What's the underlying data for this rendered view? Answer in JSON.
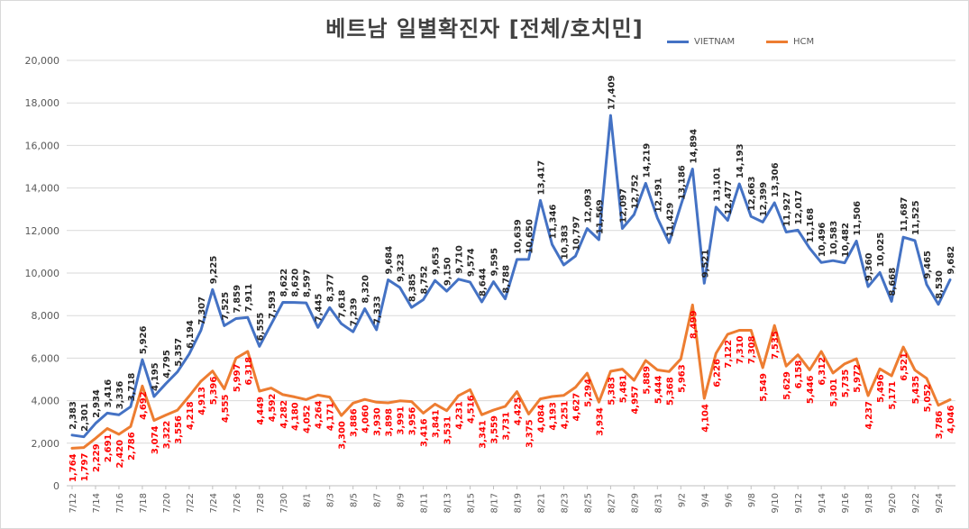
{
  "chart_data": {
    "type": "line",
    "title": "베트남  일별확진자 [전체/호치민]",
    "xlabel": "",
    "ylabel": "",
    "ylim": [
      0,
      20000
    ],
    "yticks": [
      "0",
      "2,000",
      "4,000",
      "6,000",
      "8,000",
      "10,000",
      "12,000",
      "14,000",
      "16,000",
      "18,000",
      "20,000"
    ],
    "grid": true,
    "legend_position": "top-right",
    "x": [
      "7/12",
      "7/13",
      "7/14",
      "7/15",
      "7/16",
      "7/17",
      "7/18",
      "7/19",
      "7/20",
      "7/21",
      "7/22",
      "7/23",
      "7/24",
      "7/25",
      "7/26",
      "7/27",
      "7/28",
      "7/29",
      "7/30",
      "7/31",
      "8/1",
      "8/2",
      "8/3",
      "8/4",
      "8/5",
      "8/6",
      "8/7",
      "8/8",
      "8/9",
      "8/10",
      "8/11",
      "8/12",
      "8/13",
      "8/14",
      "8/15",
      "8/16",
      "8/17",
      "8/18",
      "8/19",
      "8/20",
      "8/21",
      "8/22",
      "8/23",
      "8/24",
      "8/25",
      "8/26",
      "8/27",
      "8/28",
      "8/29",
      "8/30",
      "8/31",
      "9/1",
      "9/2",
      "9/3",
      "9/4",
      "9/5",
      "9/6",
      "9/7",
      "9/8",
      "9/9",
      "9/10",
      "9/11",
      "9/12",
      "9/13",
      "9/14",
      "9/15",
      "9/16",
      "9/17",
      "9/18",
      "9/19",
      "9/20",
      "9/21",
      "9/22",
      "9/23",
      "9/24",
      "9/25"
    ],
    "x_tick_labels": [
      "7/12",
      "7/14",
      "7/16",
      "7/18",
      "7/20",
      "7/22",
      "7/24",
      "7/26",
      "7/28",
      "7/30",
      "8/1",
      "8/3",
      "8/5",
      "8/7",
      "8/9",
      "8/11",
      "8/13",
      "8/15",
      "8/17",
      "8/19",
      "8/21",
      "8/23",
      "8/25",
      "8/27",
      "8/29",
      "8/31",
      "9/2",
      "9/4",
      "9/6",
      "9/8",
      "9/10",
      "9/12",
      "9/14",
      "9/16",
      "9/18",
      "9/20",
      "9/22",
      "9/24"
    ],
    "series": [
      {
        "name": "VIETNAM",
        "color": "#4472c4",
        "label_color": "#262626",
        "values": [
          2383,
          2301,
          2934,
          3416,
          3336,
          3718,
          5926,
          4195,
          4795,
          5357,
          6194,
          7307,
          9225,
          7525,
          7859,
          7911,
          6555,
          7593,
          8622,
          8620,
          8597,
          7445,
          8377,
          7618,
          7239,
          8320,
          7333,
          9684,
          9323,
          8385,
          8752,
          9653,
          9150,
          9710,
          9574,
          8644,
          9595,
          8788,
          10639,
          10650,
          13417,
          11346,
          10383,
          10797,
          12093,
          11569,
          17409,
          12097,
          12752,
          14219,
          12591,
          11429,
          13186,
          14894,
          9521,
          13101,
          12477,
          14193,
          12663,
          12399,
          13306,
          11927,
          12017,
          11168,
          10496,
          10583,
          10482,
          11506,
          9360,
          10025,
          8668,
          11687,
          11525,
          9465,
          8530,
          9682
        ],
        "labels": [
          "2,383",
          "2,301",
          "2,934",
          "3,416",
          "3,336",
          "3,718",
          "5,926",
          "4,195",
          "4,795",
          "5,357",
          "6,194",
          "7,307",
          "9,225",
          "7,525",
          "7,859",
          "7,911",
          "6,555",
          "7,593",
          "8,622",
          "8,620",
          "8,597",
          "7,445",
          "8,377",
          "7,618",
          "7,239",
          "8,320",
          "7,333",
          "9,684",
          "9,323",
          "8,385",
          "8,752",
          "9,653",
          "9,150",
          "9,710",
          "9,574",
          "8,644",
          "9,595",
          "8,788",
          "10,639",
          "10,650",
          "13,417",
          "11,346",
          "10,383",
          "10,797",
          "12,093",
          "11,569",
          "17,409",
          "12,097",
          "12,752",
          "14,219",
          "12,591",
          "11,429",
          "13,186",
          "14,894",
          "9,521",
          "13,101",
          "12,477",
          "14,193",
          "12,663",
          "12,399",
          "13,306",
          "11,927",
          "12,017",
          "11,168",
          "10,496",
          "10,583",
          "10,482",
          "11,506",
          "9,360",
          "10,025",
          "8,668",
          "11,687",
          "11,525",
          "9,465",
          "8,530",
          "9,682"
        ]
      },
      {
        "name": "HCM",
        "color": "#ed7d31",
        "label_color": "#ff0000",
        "values": [
          1764,
          1797,
          2229,
          2691,
          2420,
          2786,
          4692,
          3074,
          3322,
          3556,
          4218,
          4913,
          5396,
          4555,
          5997,
          6318,
          4449,
          4592,
          4282,
          4180,
          4052,
          4264,
          4171,
          3300,
          3886,
          4060,
          3930,
          3898,
          3991,
          3956,
          3416,
          3841,
          3531,
          4231,
          4516,
          3341,
          3559,
          3731,
          4425,
          3375,
          4084,
          4193,
          4251,
          4627,
          5294,
          3934,
          5383,
          5481,
          4957,
          5889,
          5444,
          5368,
          5963,
          8499,
          4104,
          6226,
          7122,
          7310,
          7308,
          5549,
          7535,
          5629,
          6158,
          5446,
          6312,
          5301,
          5735,
          5972,
          4237,
          5496,
          5171,
          6521,
          5435,
          5052,
          3786,
          4046
        ],
        "labels": [
          "1,764",
          "1,797",
          "2,229",
          "2,691",
          "2,420",
          "2,786",
          "4,692",
          "3,074",
          "3,322",
          "3,556",
          "4,218",
          "4,913",
          "5,396",
          "4,555",
          "5,997",
          "6,318",
          "4,449",
          "4,592",
          "4,282",
          "4,180",
          "4,052",
          "4,264",
          "4,171",
          "3,300",
          "3,886",
          "4,060",
          "3,930",
          "3,898",
          "3,991",
          "3,956",
          "3,416",
          "3,841",
          "3,531",
          "4,231",
          "4,516",
          "3,341",
          "3,559",
          "3,731",
          "4,425",
          "3,375",
          "4,084",
          "4,193",
          "4,251",
          "4,627",
          "5,294",
          "3,934",
          "5,383",
          "5,481",
          "4,957",
          "5,889",
          "5,444",
          "5,368",
          "5,963",
          "8,499",
          "4,104",
          "6,226",
          "7,122",
          "7,310",
          "7,308",
          "5,549",
          "7,535",
          "5,629",
          "6,158",
          "5,446",
          "6,312",
          "5,301",
          "5,735",
          "5,972",
          "4,237",
          "5,496",
          "5,171",
          "6,521",
          "5,435",
          "5,052",
          "3,786",
          "4,046"
        ]
      }
    ]
  }
}
